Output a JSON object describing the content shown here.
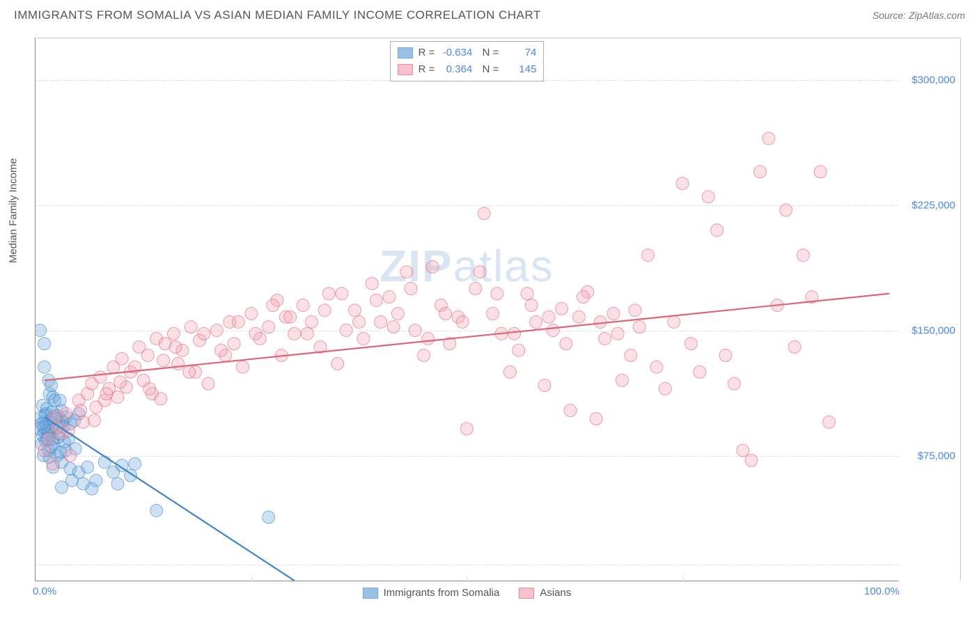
{
  "title": "IMMIGRANTS FROM SOMALIA VS ASIAN MEDIAN FAMILY INCOME CORRELATION CHART",
  "source": "Source: ZipAtlas.com",
  "watermark": "ZIPatlas",
  "ylabel": "Median Family Income",
  "chart": {
    "type": "scatter",
    "xlim": [
      0,
      100
    ],
    "ylim": [
      0,
      325000
    ],
    "x_ticks": [
      0,
      100
    ],
    "x_tick_labels": [
      "0.0%",
      "100.0%"
    ],
    "x_minor_grid": [
      25,
      50,
      75
    ],
    "y_ticks": [
      75000,
      150000,
      225000,
      300000
    ],
    "y_tick_labels": [
      "$75,000",
      "$150,000",
      "$225,000",
      "$300,000"
    ],
    "y_grid": [
      10000,
      75000,
      150000,
      225000,
      300000
    ],
    "background_color": "#ffffff",
    "grid_color": "#dddddd",
    "axis_color": "#888888",
    "tick_label_color": "#4a86e8",
    "marker_radius": 9,
    "marker_opacity": 0.35,
    "line_width": 2.2
  },
  "series": [
    {
      "name": "Immigrants from Somalia",
      "color_fill": "#6fa8dc",
      "color_stroke": "#3d85c6",
      "R": "-0.634",
      "N": "74",
      "trend": {
        "x1": 1,
        "y1": 98000,
        "x2": 30,
        "y2": 0
      },
      "points": [
        [
          0.5,
          150000
        ],
        [
          1,
          142000
        ],
        [
          1,
          128000
        ],
        [
          1.5,
          120000
        ],
        [
          2,
          110000
        ],
        [
          1.2,
          100000
        ],
        [
          1.8,
          97000
        ],
        [
          1,
          95000
        ],
        [
          2.5,
          99000
        ],
        [
          3,
          96000
        ],
        [
          1.5,
          92000
        ],
        [
          2,
          90000
        ],
        [
          3.5,
          98000
        ],
        [
          0.8,
          105000
        ],
        [
          1.3,
          103000
        ],
        [
          1.6,
          112000
        ],
        [
          2.2,
          108000
        ],
        [
          3,
          102000
        ],
        [
          4,
          94000
        ],
        [
          2.8,
          108000
        ],
        [
          1.4,
          88000
        ],
        [
          1.1,
          84000
        ],
        [
          0.7,
          82000
        ],
        [
          2,
          85000
        ],
        [
          3.2,
          92000
        ],
        [
          4.5,
          96000
        ],
        [
          5,
          100000
        ],
        [
          3.8,
          85000
        ],
        [
          1,
          89000
        ],
        [
          1.5,
          78000
        ],
        [
          2,
          68000
        ],
        [
          0.9,
          75000
        ],
        [
          3,
          71000
        ],
        [
          4,
          67000
        ],
        [
          5,
          65000
        ],
        [
          6,
          68000
        ],
        [
          8,
          71000
        ],
        [
          9,
          65000
        ],
        [
          10,
          69000
        ],
        [
          11,
          63000
        ],
        [
          11.5,
          70000
        ],
        [
          9.5,
          58000
        ],
        [
          7,
          60000
        ],
        [
          6.5,
          55000
        ],
        [
          5.5,
          58000
        ],
        [
          4.2,
          60000
        ],
        [
          3,
          56000
        ],
        [
          14,
          42000
        ],
        [
          27,
          38000
        ],
        [
          2.5,
          75000
        ],
        [
          1.8,
          117000
        ],
        [
          1.2,
          93000
        ],
        [
          0.6,
          98000
        ],
        [
          0.4,
          91000
        ],
        [
          0.8,
          87000
        ],
        [
          2.1,
          82000
        ],
        [
          3.5,
          78000
        ],
        [
          1.6,
          74000
        ],
        [
          2.3,
          93000
        ],
        [
          1.9,
          101000
        ],
        [
          2.7,
          88000
        ],
        [
          3.3,
          83000
        ],
        [
          4.6,
          79000
        ],
        [
          1.7,
          95000
        ],
        [
          0.9,
          92000
        ],
        [
          1.4,
          90000
        ],
        [
          2.6,
          86000
        ],
        [
          3.1,
          95000
        ],
        [
          1.1,
          99000
        ],
        [
          0.7,
          94000
        ],
        [
          2.4,
          97000
        ],
        [
          1.3,
          85000
        ],
        [
          1.8,
          80000
        ],
        [
          2.9,
          77000
        ]
      ]
    },
    {
      "name": "Asians",
      "color_fill": "#f4a6b7",
      "color_stroke": "#e06377",
      "R": "0.364",
      "N": "145",
      "trend": {
        "x1": 1,
        "y1": 120000,
        "x2": 99,
        "y2": 172000
      },
      "points": [
        [
          1,
          78000
        ],
        [
          1.5,
          85000
        ],
        [
          2,
          70000
        ],
        [
          2.5,
          92000
        ],
        [
          3,
          88000
        ],
        [
          3.5,
          100000
        ],
        [
          4,
          75000
        ],
        [
          5,
          108000
        ],
        [
          5.5,
          95000
        ],
        [
          6,
          112000
        ],
        [
          6.5,
          118000
        ],
        [
          7,
          104000
        ],
        [
          7.5,
          122000
        ],
        [
          8,
          108000
        ],
        [
          8.5,
          115000
        ],
        [
          9,
          128000
        ],
        [
          9.5,
          110000
        ],
        [
          10,
          133000
        ],
        [
          10.5,
          116000
        ],
        [
          11,
          125000
        ],
        [
          12,
          140000
        ],
        [
          12.5,
          120000
        ],
        [
          13,
          135000
        ],
        [
          13.5,
          112000
        ],
        [
          14,
          145000
        ],
        [
          14.5,
          109000
        ],
        [
          15,
          142000
        ],
        [
          16,
          148000
        ],
        [
          16.5,
          130000
        ],
        [
          17,
          138000
        ],
        [
          18,
          152000
        ],
        [
          18.5,
          125000
        ],
        [
          19,
          144000
        ],
        [
          20,
          118000
        ],
        [
          21,
          150000
        ],
        [
          22,
          135000
        ],
        [
          22.5,
          155000
        ],
        [
          23,
          142000
        ],
        [
          24,
          128000
        ],
        [
          25,
          160000
        ],
        [
          26,
          145000
        ],
        [
          27,
          152000
        ],
        [
          28,
          168000
        ],
        [
          28.5,
          135000
        ],
        [
          29,
          158000
        ],
        [
          30,
          148000
        ],
        [
          31,
          165000
        ],
        [
          32,
          155000
        ],
        [
          33,
          140000
        ],
        [
          34,
          172000
        ],
        [
          35,
          130000
        ],
        [
          36,
          150000
        ],
        [
          37,
          162000
        ],
        [
          38,
          145000
        ],
        [
          39,
          178000
        ],
        [
          40,
          155000
        ],
        [
          41,
          170000
        ],
        [
          42,
          160000
        ],
        [
          43,
          185000
        ],
        [
          44,
          150000
        ],
        [
          45,
          135000
        ],
        [
          46,
          188000
        ],
        [
          47,
          165000
        ],
        [
          48,
          142000
        ],
        [
          49,
          158000
        ],
        [
          50,
          91000
        ],
        [
          51,
          175000
        ],
        [
          52,
          220000
        ],
        [
          53,
          160000
        ],
        [
          54,
          148000
        ],
        [
          55,
          125000
        ],
        [
          56,
          138000
        ],
        [
          57,
          172000
        ],
        [
          58,
          155000
        ],
        [
          59,
          117000
        ],
        [
          60,
          150000
        ],
        [
          61,
          163000
        ],
        [
          62,
          102000
        ],
        [
          63,
          158000
        ],
        [
          64,
          173000
        ],
        [
          65,
          97000
        ],
        [
          66,
          145000
        ],
        [
          67,
          160000
        ],
        [
          68,
          120000
        ],
        [
          69,
          135000
        ],
        [
          70,
          152000
        ],
        [
          71,
          195000
        ],
        [
          72,
          128000
        ],
        [
          73,
          115000
        ],
        [
          74,
          155000
        ],
        [
          75,
          238000
        ],
        [
          76,
          142000
        ],
        [
          77,
          125000
        ],
        [
          78,
          230000
        ],
        [
          79,
          210000
        ],
        [
          80,
          135000
        ],
        [
          81,
          118000
        ],
        [
          82,
          78000
        ],
        [
          83,
          72000
        ],
        [
          84,
          245000
        ],
        [
          85,
          265000
        ],
        [
          86,
          165000
        ],
        [
          87,
          222000
        ],
        [
          88,
          140000
        ],
        [
          89,
          195000
        ],
        [
          90,
          170000
        ],
        [
          91,
          245000
        ],
        [
          92,
          95000
        ],
        [
          2.2,
          98000
        ],
        [
          3.8,
          90000
        ],
        [
          5.2,
          102000
        ],
        [
          6.8,
          96000
        ],
        [
          8.2,
          112000
        ],
        [
          9.8,
          119000
        ],
        [
          11.5,
          128000
        ],
        [
          13.2,
          115000
        ],
        [
          14.8,
          132000
        ],
        [
          16.2,
          140000
        ],
        [
          17.8,
          125000
        ],
        [
          19.5,
          148000
        ],
        [
          21.5,
          138000
        ],
        [
          23.5,
          155000
        ],
        [
          25.5,
          148000
        ],
        [
          27.5,
          165000
        ],
        [
          29.5,
          158000
        ],
        [
          31.5,
          148000
        ],
        [
          33.5,
          162000
        ],
        [
          35.5,
          172000
        ],
        [
          37.5,
          155000
        ],
        [
          39.5,
          168000
        ],
        [
          41.5,
          152000
        ],
        [
          43.5,
          175000
        ],
        [
          45.5,
          145000
        ],
        [
          47.5,
          160000
        ],
        [
          49.5,
          155000
        ],
        [
          51.5,
          185000
        ],
        [
          53.5,
          172000
        ],
        [
          55.5,
          148000
        ],
        [
          57.5,
          165000
        ],
        [
          59.5,
          158000
        ],
        [
          61.5,
          142000
        ],
        [
          63.5,
          170000
        ],
        [
          65.5,
          155000
        ],
        [
          67.5,
          148000
        ],
        [
          69.5,
          162000
        ]
      ]
    }
  ]
}
